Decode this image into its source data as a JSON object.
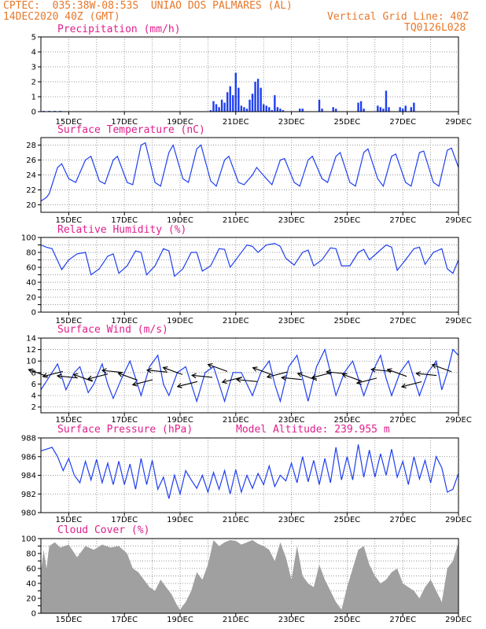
{
  "header": {
    "source": "CPTEC:",
    "location_coords": "035:38W-08:53S",
    "location_name": "UNIAO DOS PALMARES (AL)",
    "init_time": "14DEC2020 40Z (GMT)",
    "grid_note": "Vertical Grid Line: 40Z",
    "model_id": "TQ0126L028"
  },
  "colors": {
    "header": "#e8782a",
    "panel_title": "#e0208c",
    "series": "#1f3ff0",
    "cloud": "#a0a0a0",
    "arrows": "#000000"
  },
  "chart_data": [
    {
      "type": "bar",
      "title": "Precipitation (mm/h)",
      "xlabels": [
        "15DEC",
        "17DEC",
        "19DEC",
        "21DEC",
        "23DEC",
        "25DEC",
        "27DEC",
        "29DEC"
      ],
      "x_days": [
        0,
        15
      ],
      "ylim": [
        0,
        5
      ],
      "yticks": [
        0,
        1,
        2,
        3,
        4,
        5
      ],
      "grid": true,
      "x": [
        0.1,
        0.3,
        0.5,
        0.7,
        6.1,
        6.2,
        6.3,
        6.4,
        6.5,
        6.6,
        6.7,
        6.8,
        6.9,
        7.0,
        7.1,
        7.2,
        7.3,
        7.4,
        7.5,
        7.6,
        7.7,
        7.8,
        7.9,
        8.0,
        8.1,
        8.2,
        8.3,
        8.4,
        8.5,
        8.6,
        8.7,
        9.3,
        9.4,
        10.0,
        10.1,
        10.5,
        10.6,
        11.4,
        11.5,
        11.6,
        12.1,
        12.2,
        12.3,
        12.4,
        12.5,
        12.9,
        13.0,
        13.1,
        13.3,
        13.4
      ],
      "values": [
        0.05,
        0.05,
        0.05,
        0.05,
        0.1,
        0.7,
        0.5,
        0.3,
        0.8,
        0.6,
        1.3,
        1.7,
        1.1,
        2.6,
        1.6,
        0.4,
        0.3,
        0.2,
        0.8,
        1.2,
        2.0,
        2.2,
        1.6,
        0.5,
        0.4,
        0.3,
        0.1,
        1.1,
        0.3,
        0.2,
        0.1,
        0.2,
        0.2,
        0.8,
        0.2,
        0.3,
        0.2,
        0.6,
        0.7,
        0.2,
        0.4,
        0.3,
        0.2,
        1.4,
        0.3,
        0.3,
        0.2,
        0.4,
        0.3,
        0.6
      ]
    },
    {
      "type": "line",
      "title": "Surface Temperature (nC)",
      "xlabels": [
        "15DEC",
        "17DEC",
        "19DEC",
        "21DEC",
        "23DEC",
        "25DEC",
        "27DEC",
        "29DEC"
      ],
      "ylim": [
        19,
        29
      ],
      "yticks": [
        20,
        22,
        24,
        26,
        28
      ],
      "grid": true,
      "series": [
        {
          "color": "#1f3ff0",
          "x": [
            0,
            0.2,
            0.3,
            0.6,
            0.75,
            1.0,
            1.25,
            1.6,
            1.8,
            2.1,
            2.3,
            2.6,
            2.75,
            3.1,
            3.3,
            3.6,
            3.75,
            4.1,
            4.3,
            4.6,
            4.75,
            5.1,
            5.3,
            5.6,
            5.75,
            6.1,
            6.3,
            6.6,
            6.75,
            7.1,
            7.3,
            7.6,
            7.75,
            8.1,
            8.3,
            8.6,
            8.75,
            9.1,
            9.3,
            9.6,
            9.75,
            10.1,
            10.3,
            10.6,
            10.75,
            11.1,
            11.3,
            11.6,
            11.75,
            12.1,
            12.3,
            12.6,
            12.75,
            13.1,
            13.3,
            13.6,
            13.75,
            14.1,
            14.3,
            14.6,
            14.75,
            15.0
          ],
          "y": [
            20.5,
            21.0,
            21.5,
            25.0,
            25.5,
            23.5,
            23.0,
            26.0,
            26.5,
            23.2,
            22.8,
            26.0,
            26.5,
            23.0,
            22.7,
            28.0,
            28.3,
            23.0,
            22.5,
            27.0,
            28.0,
            23.5,
            23.0,
            27.5,
            28.0,
            23.2,
            22.5,
            26.0,
            26.5,
            23.0,
            22.7,
            24.0,
            25.0,
            23.5,
            22.7,
            26.0,
            26.2,
            23.0,
            22.5,
            26.0,
            26.5,
            23.5,
            23.0,
            26.5,
            27.0,
            23.0,
            22.5,
            27.0,
            27.5,
            23.5,
            22.5,
            26.5,
            26.8,
            23.0,
            22.5,
            27.0,
            27.2,
            23.0,
            22.5,
            27.3,
            27.6,
            25.0
          ]
        }
      ]
    },
    {
      "type": "line",
      "title": "Relative Humidity (%)",
      "xlabels": [
        "15DEC",
        "17DEC",
        "19DEC",
        "21DEC",
        "23DEC",
        "25DEC",
        "27DEC",
        "29DEC"
      ],
      "ylim": [
        0,
        100
      ],
      "yticks": [
        0,
        10,
        20,
        30,
        40,
        50,
        60,
        70,
        80,
        90,
        100
      ],
      "grid": true,
      "series": [
        {
          "color": "#1f3ff0",
          "x": [
            0,
            0.2,
            0.4,
            0.75,
            1.0,
            1.3,
            1.6,
            1.8,
            2.1,
            2.4,
            2.6,
            2.8,
            3.1,
            3.4,
            3.6,
            3.8,
            4.1,
            4.4,
            4.6,
            4.8,
            5.1,
            5.4,
            5.6,
            5.8,
            6.1,
            6.4,
            6.6,
            6.8,
            7.1,
            7.4,
            7.6,
            7.8,
            8.1,
            8.4,
            8.6,
            8.8,
            9.1,
            9.4,
            9.6,
            9.8,
            10.1,
            10.4,
            10.6,
            10.8,
            11.1,
            11.4,
            11.6,
            11.8,
            12.1,
            12.4,
            12.6,
            12.8,
            13.1,
            13.4,
            13.6,
            13.8,
            14.1,
            14.4,
            14.6,
            14.8,
            15.0
          ],
          "y": [
            90,
            87,
            85,
            57,
            70,
            78,
            80,
            50,
            58,
            75,
            78,
            52,
            62,
            82,
            80,
            50,
            62,
            85,
            82,
            48,
            58,
            80,
            80,
            55,
            62,
            85,
            84,
            60,
            75,
            90,
            88,
            80,
            90,
            92,
            88,
            72,
            63,
            80,
            83,
            62,
            70,
            86,
            85,
            62,
            62,
            80,
            84,
            70,
            80,
            90,
            87,
            56,
            70,
            85,
            87,
            64,
            80,
            85,
            58,
            52,
            70
          ]
        }
      ]
    },
    {
      "type": "line",
      "title": "Surface Wind (m/s)",
      "xlabels": [
        "15DEC",
        "17DEC",
        "19DEC",
        "21DEC",
        "23DEC",
        "25DEC",
        "27DEC",
        "29DEC"
      ],
      "ylim": [
        1,
        14
      ],
      "yticks": [
        2,
        4,
        6,
        8,
        10,
        12,
        14
      ],
      "grid": true,
      "series": [
        {
          "color": "#1f3ff0",
          "x": [
            0,
            0.2,
            0.4,
            0.6,
            0.9,
            1.2,
            1.4,
            1.7,
            1.9,
            2.2,
            2.4,
            2.6,
            2.9,
            3.2,
            3.4,
            3.6,
            3.9,
            4.2,
            4.4,
            4.6,
            4.9,
            5.2,
            5.4,
            5.6,
            5.9,
            6.2,
            6.4,
            6.6,
            6.9,
            7.2,
            7.4,
            7.6,
            7.9,
            8.2,
            8.4,
            8.6,
            8.9,
            9.2,
            9.4,
            9.6,
            9.9,
            10.2,
            10.4,
            10.6,
            10.9,
            11.2,
            11.4,
            11.6,
            11.9,
            12.2,
            12.4,
            12.6,
            12.9,
            13.2,
            13.4,
            13.6,
            13.9,
            14.2,
            14.4,
            14.6,
            14.8,
            15.0
          ],
          "y": [
            5,
            6.5,
            8,
            9.5,
            5,
            8,
            9,
            4.5,
            6,
            9.5,
            6,
            3.5,
            7,
            10,
            7,
            4,
            9,
            11,
            6,
            4,
            8,
            9,
            6,
            3,
            8,
            9,
            6,
            3,
            8,
            8,
            6,
            4,
            8,
            10,
            6,
            3,
            9,
            11,
            7,
            3,
            9,
            12,
            8,
            4,
            8,
            10,
            7,
            4,
            8,
            11,
            7,
            4,
            8,
            10,
            7,
            4,
            8,
            10,
            5,
            8,
            12,
            11
          ]
        }
      ],
      "wind_arrow_count": 28
    },
    {
      "type": "line",
      "title": "Surface Pressure (hPa)",
      "annotation": "Model Altitude: 239.955 m",
      "xlabels": [
        "15DEC",
        "17DEC",
        "19DEC",
        "21DEC",
        "23DEC",
        "25DEC",
        "27DEC",
        "29DEC"
      ],
      "ylim": [
        980,
        988
      ],
      "yticks": [
        980,
        982,
        984,
        986,
        988
      ],
      "grid": true,
      "series": [
        {
          "color": "#1f3ff0",
          "x": [
            0,
            0.2,
            0.4,
            0.6,
            0.8,
            1.0,
            1.2,
            1.4,
            1.6,
            1.8,
            2.0,
            2.2,
            2.4,
            2.6,
            2.8,
            3.0,
            3.2,
            3.4,
            3.6,
            3.8,
            4.0,
            4.2,
            4.4,
            4.6,
            4.8,
            5.0,
            5.2,
            5.4,
            5.6,
            5.8,
            6.0,
            6.2,
            6.4,
            6.6,
            6.8,
            7.0,
            7.2,
            7.4,
            7.6,
            7.8,
            8.0,
            8.2,
            8.4,
            8.6,
            8.8,
            9.0,
            9.2,
            9.4,
            9.6,
            9.8,
            10.0,
            10.2,
            10.4,
            10.6,
            10.8,
            11.0,
            11.2,
            11.4,
            11.6,
            11.8,
            12.0,
            12.2,
            12.4,
            12.6,
            12.8,
            13.0,
            13.2,
            13.4,
            13.6,
            13.8,
            14.0,
            14.2,
            14.4,
            14.6,
            14.8,
            15.0
          ],
          "y": [
            986.6,
            986.8,
            987.0,
            986.0,
            984.5,
            985.8,
            984.0,
            983.2,
            985.5,
            983.5,
            985.7,
            983.2,
            985.3,
            983.0,
            985.5,
            983.0,
            985.2,
            982.5,
            985.8,
            983.0,
            985.6,
            982.5,
            983.8,
            981.5,
            984.0,
            982.0,
            984.5,
            983.5,
            982.6,
            984.0,
            982.2,
            984.3,
            982.5,
            984.5,
            982.0,
            984.6,
            982.2,
            984.0,
            982.6,
            984.2,
            983.0,
            985.0,
            982.8,
            984.0,
            983.4,
            985.3,
            983.2,
            986.0,
            983.3,
            985.6,
            983.0,
            985.8,
            983.2,
            987.0,
            983.5,
            986.0,
            983.5,
            987.3,
            983.8,
            986.7,
            983.8,
            986.3,
            984.0,
            986.8,
            983.8,
            985.5,
            983.0,
            986.0,
            983.6,
            985.6,
            983.2,
            986.0,
            984.8,
            982.2,
            982.5,
            984.2
          ]
        }
      ]
    },
    {
      "type": "area",
      "title": "Cloud Cover (%)",
      "xlabels": [
        "15DEC",
        "17DEC",
        "19DEC",
        "21DEC",
        "23DEC",
        "25DEC",
        "27DEC",
        "29DEC"
      ],
      "ylim": [
        0,
        100
      ],
      "yticks": [
        0,
        10,
        20,
        30,
        40,
        50,
        60,
        70,
        80,
        90,
        100
      ],
      "grid": true,
      "series": [
        {
          "color": "#a0a0a0",
          "x": [
            0,
            0.1,
            0.2,
            0.3,
            0.5,
            0.7,
            1.0,
            1.3,
            1.6,
            1.9,
            2.2,
            2.5,
            2.8,
            3.1,
            3.3,
            3.5,
            3.7,
            3.9,
            4.1,
            4.3,
            4.5,
            4.7,
            4.9,
            5.0,
            5.2,
            5.4,
            5.6,
            5.8,
            6.0,
            6.2,
            6.4,
            6.6,
            6.8,
            7.0,
            7.2,
            7.4,
            7.6,
            7.8,
            8.0,
            8.2,
            8.4,
            8.6,
            8.8,
            9.0,
            9.2,
            9.4,
            9.6,
            9.8,
            10.0,
            10.2,
            10.4,
            10.6,
            10.8,
            11.0,
            11.2,
            11.4,
            11.6,
            11.8,
            12.0,
            12.2,
            12.4,
            12.6,
            12.8,
            13.0,
            13.2,
            13.4,
            13.6,
            13.8,
            14.0,
            14.2,
            14.4,
            14.6,
            14.8,
            15.0
          ],
          "y": [
            55,
            85,
            60,
            90,
            95,
            88,
            92,
            75,
            90,
            85,
            92,
            88,
            90,
            80,
            60,
            55,
            45,
            35,
            30,
            45,
            35,
            25,
            10,
            5,
            15,
            30,
            55,
            45,
            65,
            98,
            90,
            95,
            98,
            97,
            92,
            95,
            98,
            93,
            90,
            85,
            70,
            95,
            75,
            45,
            90,
            50,
            40,
            35,
            65,
            45,
            30,
            15,
            5,
            35,
            60,
            85,
            90,
            65,
            50,
            40,
            45,
            55,
            60,
            40,
            35,
            30,
            20,
            35,
            45,
            30,
            15,
            60,
            70,
            95
          ]
        }
      ]
    }
  ]
}
